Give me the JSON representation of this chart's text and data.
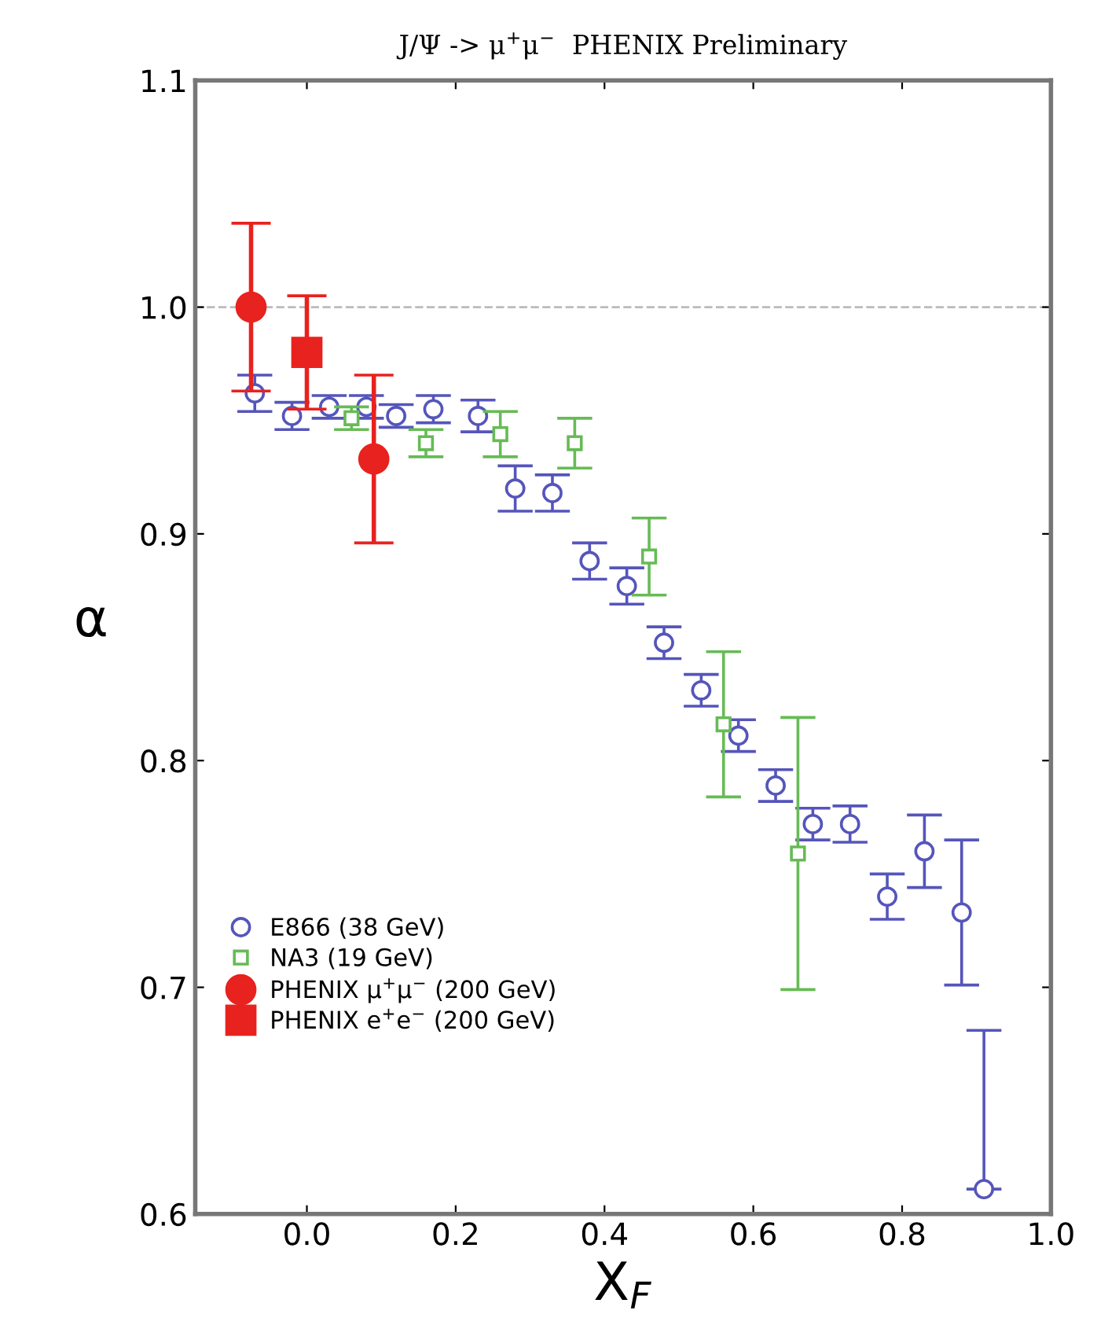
{
  "chart_data": {
    "type": "scatter",
    "title": "J/Ψ -> μ$^{+}$μ$^{−}$  PHENIX Preliminary",
    "xlabel": "X$_{F}$",
    "ylabel": "α",
    "xlim": [
      -0.15,
      1.0
    ],
    "ylim": [
      0.6,
      1.1
    ],
    "xticks": [
      {
        "value": 0.0,
        "label": "0.0"
      },
      {
        "value": 0.2,
        "label": "0.2"
      },
      {
        "value": 0.4,
        "label": "0.4"
      },
      {
        "value": 0.6,
        "label": "0.6"
      },
      {
        "value": 0.8,
        "label": "0.8"
      },
      {
        "value": 1.0,
        "label": "1.0"
      }
    ],
    "yticks": [
      {
        "value": 0.6,
        "label": "0.6"
      },
      {
        "value": 0.7,
        "label": "0.7"
      },
      {
        "value": 0.8,
        "label": "0.8"
      },
      {
        "value": 0.9,
        "label": "0.9"
      },
      {
        "value": 1.0,
        "label": "1.0"
      },
      {
        "value": 1.1,
        "label": "1.1"
      }
    ],
    "grid": false,
    "legend": "bottom left",
    "ref_lines": [
      {
        "axis": "y",
        "value": 1.0,
        "label": null,
        "color": "#bbbbbb",
        "line_style": "dashed"
      }
    ],
    "series": [
      {
        "name": "E866 (38 GeV)",
        "color": "#5555bb",
        "marker": "circle",
        "x": [
          -0.07,
          -0.02,
          0.03,
          0.08,
          0.12,
          0.17,
          0.23,
          0.28,
          0.33,
          0.38,
          0.43,
          0.48,
          0.53,
          0.58,
          0.63,
          0.68,
          0.73,
          0.78,
          0.83,
          0.88,
          0.91
        ],
        "values": [
          0.962,
          0.952,
          0.956,
          0.956,
          0.952,
          0.955,
          0.952,
          0.92,
          0.918,
          0.888,
          0.877,
          0.852,
          0.831,
          0.811,
          0.789,
          0.772,
          0.772,
          0.74,
          0.76,
          0.733,
          0.611
        ],
        "errors": [
          0.008,
          0.006,
          0.005,
          0.005,
          0.005,
          0.006,
          0.007,
          0.01,
          0.008,
          0.008,
          0.008,
          0.007,
          0.007,
          0.007,
          0.007,
          0.007,
          0.008,
          0.01,
          0.016,
          0.032,
          [
            0.611,
            0.681
          ]
        ]
      },
      {
        "name": "NA3 (19 GeV)",
        "color": "#66bb55",
        "marker": "square",
        "x": [
          0.06,
          0.16,
          0.26,
          0.36,
          0.46,
          0.56,
          0.66
        ],
        "values": [
          0.951,
          0.94,
          0.944,
          0.94,
          0.89,
          0.816,
          0.759
        ],
        "errors": [
          0.005,
          0.006,
          0.01,
          0.011,
          0.017,
          0.032,
          0.06
        ]
      },
      {
        "name": "PHENIX μ$^{+}$μ$^{−}$ (200 GeV)",
        "color": "#e8221e",
        "marker": "circle",
        "x": [
          -0.075,
          0.09
        ],
        "values": [
          1.0,
          0.933
        ],
        "errors": [
          0.037,
          0.037
        ]
      },
      {
        "name": "PHENIX e$^{+}$e$^{−}$ (200 GeV)",
        "color": "#e8221e",
        "marker": "square",
        "x": [
          0.0
        ],
        "values": [
          0.98
        ],
        "errors": [
          0.025
        ]
      }
    ]
  }
}
